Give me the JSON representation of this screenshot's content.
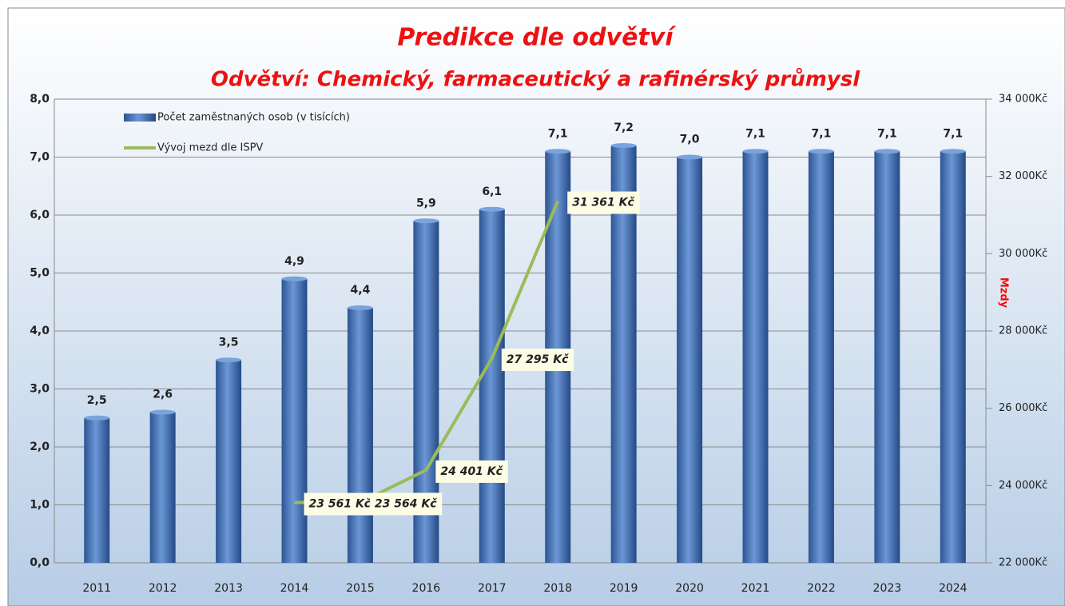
{
  "chart_data": {
    "type": "bar",
    "title": "Predikce dle odvětví",
    "subtitle": "Odvětví: Chemický, farmaceutický a rafinérský průmysl",
    "y2_label": "Mzdy",
    "categories": [
      "2011",
      "2012",
      "2013",
      "2014",
      "2015",
      "2016",
      "2017",
      "2018",
      "2019",
      "2020",
      "2021",
      "2022",
      "2023",
      "2024"
    ],
    "series": [
      {
        "name": "Počet zaměstnaných osob (v tisících)",
        "color": "#4a78bd",
        "type": "bar",
        "values": [
          2.5,
          2.6,
          3.5,
          4.9,
          4.4,
          5.9,
          6.1,
          7.1,
          7.2,
          7.0,
          7.1,
          7.1,
          7.1,
          7.1
        ],
        "value_labels": [
          "2,5",
          "2,6",
          "3,5",
          "4,9",
          "4,4",
          "5,9",
          "6,1",
          "7,1",
          "7,2",
          "7,0",
          "7,1",
          "7,1",
          "7,1",
          "7,1"
        ]
      },
      {
        "name": "Vývoj mezd dle ISPV",
        "color": "#9bbb59",
        "type": "line",
        "axis": "y2",
        "values": [
          null,
          null,
          null,
          23561,
          23564,
          24401,
          27295,
          31361,
          null,
          null,
          null,
          null,
          null,
          null
        ],
        "value_labels": [
          null,
          null,
          null,
          "23 561 Kč",
          "23 564 Kč",
          "24 401 Kč",
          "27 295 Kč",
          "31 361 Kč",
          null,
          null,
          null,
          null,
          null,
          null
        ]
      }
    ],
    "ylim": [
      0,
      8
    ],
    "yticks": [
      {
        "value": 0,
        "label": "0,0"
      },
      {
        "value": 1,
        "label": "1,0"
      },
      {
        "value": 2,
        "label": "2,0"
      },
      {
        "value": 3,
        "label": "3,0"
      },
      {
        "value": 4,
        "label": "4,0"
      },
      {
        "value": 5,
        "label": "5,0"
      },
      {
        "value": 6,
        "label": "6,0"
      },
      {
        "value": 7,
        "label": "7,0"
      },
      {
        "value": 8,
        "label": "8,0"
      }
    ],
    "y2lim": [
      22000,
      34000
    ],
    "y2ticks": [
      {
        "value": 22000,
        "label": "22 000Kč"
      },
      {
        "value": 24000,
        "label": "24 000Kč"
      },
      {
        "value": 26000,
        "label": "26 000Kč"
      },
      {
        "value": 28000,
        "label": "28 000Kč"
      },
      {
        "value": 30000,
        "label": "30 000Kč"
      },
      {
        "value": 32000,
        "label": "32 000Kč"
      },
      {
        "value": 34000,
        "label": "34 000Kč"
      }
    ],
    "grid": true,
    "legend": "upper left"
  }
}
